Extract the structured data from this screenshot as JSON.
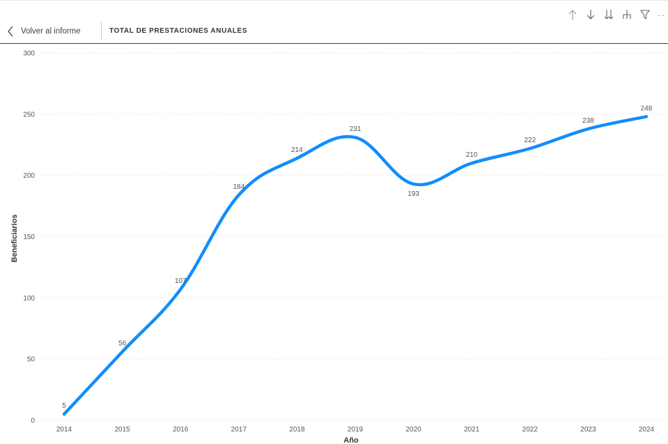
{
  "header": {
    "back_label": "Volver al informe",
    "title": "TOTAL DE PRESTACIONES ANUALES"
  },
  "toolbar": {
    "icons": [
      "arrow-up-icon",
      "arrow-down-icon",
      "double-arrow-down-icon",
      "expand-hierarchy-icon",
      "filter-icon",
      "more-options-icon"
    ],
    "more_label": "··"
  },
  "chart_data": {
    "type": "line",
    "x": [
      "2014",
      "2015",
      "2016",
      "2017",
      "2018",
      "2019",
      "2020",
      "2021",
      "2022",
      "2023",
      "2024"
    ],
    "series": [
      {
        "values": [
          5,
          56,
          107,
          184,
          214,
          231,
          193,
          210,
          222,
          238,
          248
        ]
      }
    ],
    "xlabel": "Año",
    "ylabel": "Beneficiarios",
    "ylim": [
      0,
      300
    ],
    "yticks": [
      0,
      50,
      100,
      150,
      200,
      250,
      300
    ],
    "grid": true,
    "legend": "none",
    "line_color": "#118DFF",
    "label_positions": [
      "above",
      "above",
      "above",
      "above",
      "above",
      "above",
      "below",
      "above",
      "above",
      "above",
      "above"
    ]
  }
}
